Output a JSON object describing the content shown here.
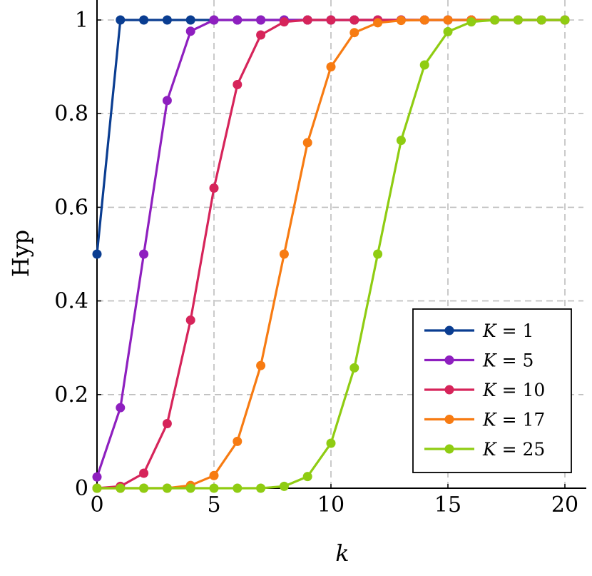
{
  "chart_data": {
    "type": "line",
    "title": "",
    "xlabel": "k",
    "ylabel": "Hyp",
    "xlim": [
      0,
      20
    ],
    "ylim": [
      0,
      1
    ],
    "grid": true,
    "legend_position": "bottom-right",
    "x_ticks": [
      "0",
      "5",
      "10",
      "15",
      "20"
    ],
    "y_ticks": [
      "0",
      "0.2",
      "0.4",
      "0.6",
      "0.8",
      "1"
    ],
    "x": [
      0,
      1,
      2,
      3,
      4,
      5,
      6,
      7,
      8,
      9,
      10,
      11,
      12,
      13,
      14,
      15,
      16,
      17,
      18,
      19,
      20
    ],
    "series": [
      {
        "name": "K = 1",
        "legend_var": "K",
        "legend_value": "= 1",
        "color": "#0a3d91",
        "x": [
          0,
          1,
          2,
          3,
          4,
          5,
          6,
          7,
          8,
          9,
          10,
          11,
          12,
          13,
          14,
          15,
          16,
          17,
          18,
          19,
          20
        ],
        "values": [
          0.5,
          1,
          1,
          1,
          1,
          1,
          1,
          1,
          1,
          1,
          1,
          1,
          1,
          1,
          1,
          1,
          1,
          1,
          1,
          1,
          1
        ]
      },
      {
        "name": "K = 5",
        "legend_var": "K",
        "legend_value": "= 5",
        "color": "#8e1fbf",
        "x": [
          0,
          1,
          2,
          3,
          4,
          5,
          6,
          7,
          8,
          9,
          10,
          11,
          12,
          13,
          14,
          15,
          16,
          17,
          18,
          19,
          20
        ],
        "values": [
          0.024,
          0.172,
          0.5,
          0.828,
          0.976,
          1,
          1,
          1,
          1,
          1,
          1,
          1,
          1,
          1,
          1,
          1,
          1,
          1,
          1,
          1,
          1
        ]
      },
      {
        "name": "K = 10",
        "legend_var": "K",
        "legend_value": "= 10",
        "color": "#d6245a",
        "x": [
          0,
          1,
          2,
          3,
          4,
          5,
          6,
          7,
          8,
          9,
          10,
          11,
          12,
          13,
          14,
          15,
          16,
          17,
          18,
          19,
          20
        ],
        "values": [
          0,
          0.004,
          0.032,
          0.138,
          0.359,
          0.641,
          0.862,
          0.968,
          0.996,
          1,
          1,
          1,
          1,
          1,
          1,
          1,
          1,
          1,
          1,
          1,
          1
        ]
      },
      {
        "name": "K = 17",
        "legend_var": "K",
        "legend_value": "= 17",
        "color": "#f77b12",
        "x": [
          0,
          1,
          2,
          3,
          4,
          5,
          6,
          7,
          8,
          9,
          10,
          11,
          12,
          13,
          14,
          15,
          16,
          17,
          18,
          19,
          20
        ],
        "values": [
          0,
          0,
          0,
          0,
          0.006,
          0.027,
          0.1,
          0.262,
          0.5,
          0.738,
          0.9,
          0.973,
          0.994,
          0.999,
          1,
          1,
          1,
          1,
          1,
          1,
          1
        ]
      },
      {
        "name": "K = 25",
        "legend_var": "K",
        "legend_value": "= 25",
        "color": "#8fcc12",
        "x": [
          0,
          1,
          2,
          3,
          4,
          5,
          6,
          7,
          8,
          9,
          10,
          11,
          12,
          13,
          14,
          15,
          16,
          17,
          18,
          19,
          20
        ],
        "values": [
          0,
          0,
          0,
          0,
          0,
          0,
          0,
          0,
          0.004,
          0.025,
          0.096,
          0.257,
          0.5,
          0.743,
          0.904,
          0.975,
          0.996,
          1,
          1,
          1,
          1
        ]
      }
    ]
  }
}
